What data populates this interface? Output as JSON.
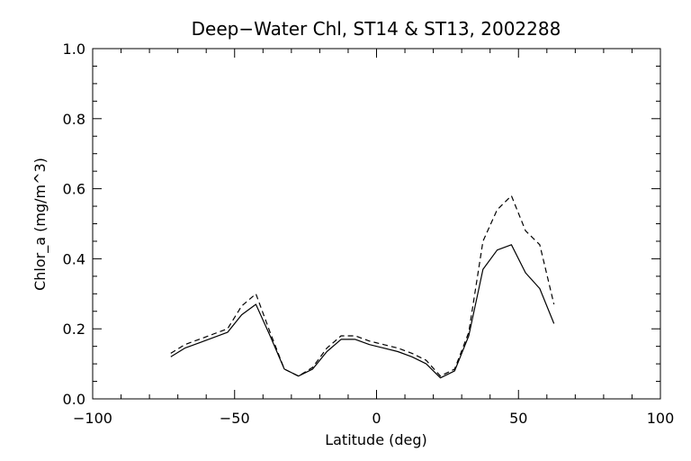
{
  "chart_data": {
    "type": "line",
    "title": "Deep−Water Chl, ST14 & ST13, 2002288",
    "xlabel": "Latitude (deg)",
    "ylabel": "Chlor_a (mg/m^3)",
    "xlim": [
      -100,
      100
    ],
    "ylim": [
      0.0,
      1.0
    ],
    "xticks": [
      -100,
      -50,
      0,
      50,
      100
    ],
    "xtick_labels": [
      "−100",
      "−50",
      "0",
      "50",
      "100"
    ],
    "yticks": [
      0.0,
      0.2,
      0.4,
      0.6,
      0.8,
      1.0
    ],
    "ytick_labels": [
      "0.0",
      "0.2",
      "0.4",
      "0.6",
      "0.8",
      "1.0"
    ],
    "grid": false,
    "series": [
      {
        "style": "solid",
        "x": [
          -72.5,
          -67.5,
          -62.5,
          -57.5,
          -52.5,
          -47.5,
          -42.5,
          -37.5,
          -32.5,
          -27.5,
          -22.5,
          -17.5,
          -12.5,
          -7.5,
          -2.5,
          2.5,
          7.5,
          12.5,
          17.5,
          22.5,
          27.5,
          32.5,
          37.5,
          42.5,
          47.5,
          52.5,
          57.5,
          62.5
        ],
        "y": [
          0.12,
          0.145,
          0.16,
          0.175,
          0.19,
          0.24,
          0.27,
          0.18,
          0.085,
          0.065,
          0.085,
          0.135,
          0.17,
          0.17,
          0.155,
          0.145,
          0.135,
          0.12,
          0.1,
          0.06,
          0.08,
          0.18,
          0.37,
          0.425,
          0.44,
          0.36,
          0.315,
          0.215
        ]
      },
      {
        "style": "dashed",
        "x": [
          -72.5,
          -67.5,
          -62.5,
          -57.5,
          -52.5,
          -47.5,
          -42.5,
          -37.5,
          -32.5,
          -27.5,
          -22.5,
          -17.5,
          -12.5,
          -7.5,
          -2.5,
          2.5,
          7.5,
          12.5,
          17.5,
          22.5,
          27.5,
          32.5,
          37.5,
          42.5,
          47.5,
          52.5,
          57.5,
          62.5
        ],
        "y": [
          0.13,
          0.155,
          0.17,
          0.185,
          0.2,
          0.265,
          0.3,
          0.19,
          0.085,
          0.065,
          0.09,
          0.145,
          0.18,
          0.18,
          0.165,
          0.155,
          0.145,
          0.13,
          0.11,
          0.065,
          0.085,
          0.19,
          0.45,
          0.54,
          0.58,
          0.48,
          0.44,
          0.27
        ]
      }
    ]
  }
}
